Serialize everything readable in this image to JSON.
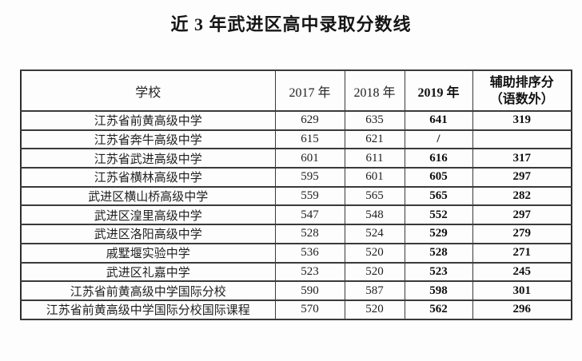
{
  "title": "近 3 年武进区高中录取分数线",
  "colors": {
    "text": "#1f1f1f",
    "border": "#3a3a3a",
    "background": "#fdfdfd"
  },
  "table": {
    "headers": {
      "school": "学校",
      "y2017": "2017 年",
      "y2018": "2018 年",
      "y2019": "2019 年",
      "aux_line1": "辅助排序分",
      "aux_line2": "（语数外）"
    },
    "rows": [
      {
        "school": "江苏省前黄高级中学",
        "y2017": "629",
        "y2018": "635",
        "y2019": "641",
        "aux": "319"
      },
      {
        "school": "江苏省奔牛高级中学",
        "y2017": "615",
        "y2018": "621",
        "y2019": "/",
        "aux": ""
      },
      {
        "school": "江苏省武进高级中学",
        "y2017": "601",
        "y2018": "611",
        "y2019": "616",
        "aux": "317"
      },
      {
        "school": "江苏省横林高级中学",
        "y2017": "595",
        "y2018": "601",
        "y2019": "605",
        "aux": "297"
      },
      {
        "school": "武进区横山桥高级中学",
        "y2017": "559",
        "y2018": "565",
        "y2019": "565",
        "aux": "282"
      },
      {
        "school": "武进区湟里高级中学",
        "y2017": "547",
        "y2018": "548",
        "y2019": "552",
        "aux": "297"
      },
      {
        "school": "武进区洛阳高级中学",
        "y2017": "528",
        "y2018": "524",
        "y2019": "529",
        "aux": "279"
      },
      {
        "school": "戚墅堰实验中学",
        "y2017": "536",
        "y2018": "520",
        "y2019": "528",
        "aux": "271"
      },
      {
        "school": "武进区礼嘉中学",
        "y2017": "523",
        "y2018": "520",
        "y2019": "523",
        "aux": "245"
      },
      {
        "school": "江苏省前黄高级中学国际分校",
        "y2017": "590",
        "y2018": "587",
        "y2019": "598",
        "aux": "301"
      },
      {
        "school": "江苏省前黄高级中学国际分校国际课程",
        "y2017": "570",
        "y2018": "520",
        "y2019": "562",
        "aux": "296"
      }
    ]
  }
}
